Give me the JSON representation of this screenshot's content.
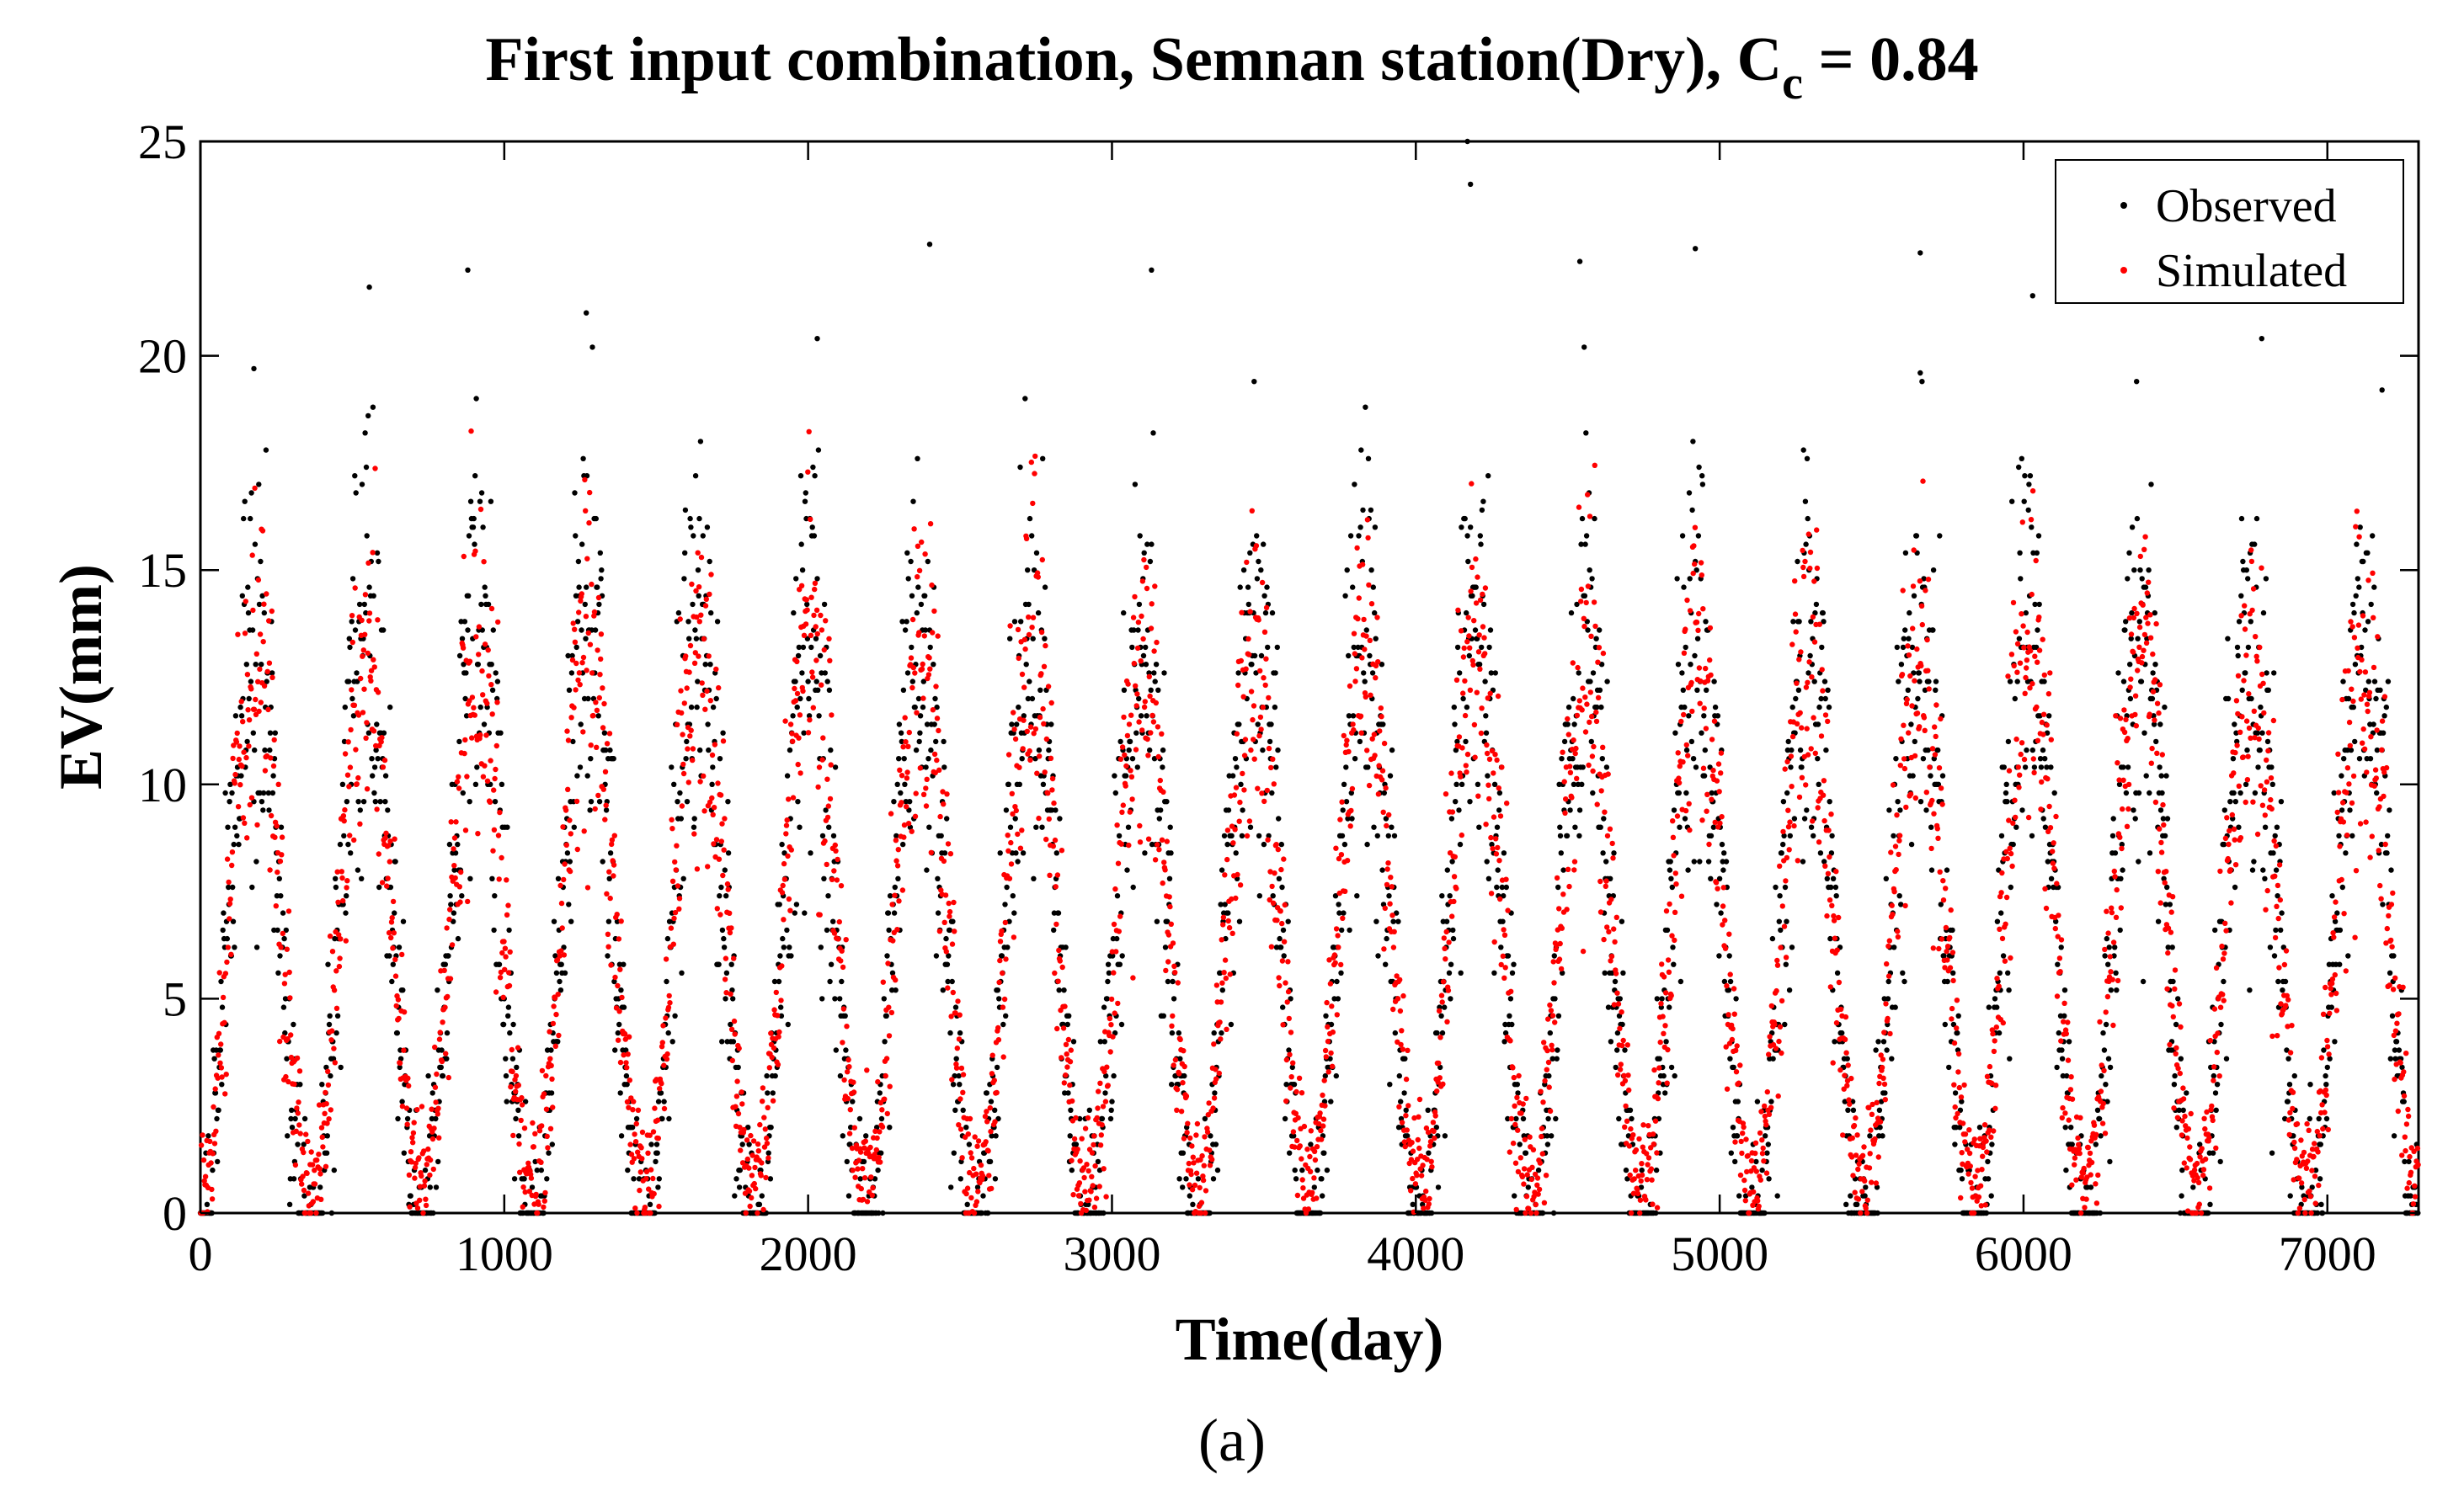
{
  "chart_data": {
    "type": "scatter",
    "title": {
      "main": "First input combination, Semnan station(Dry), C",
      "subscript": "c",
      "suffix": " = 0.84"
    },
    "xlabel": "Time(day)",
    "ylabel": "EV(mm)",
    "panel_label": "(a)",
    "xlim": [
      0,
      7300
    ],
    "ylim": [
      0,
      25
    ],
    "xticks": [
      0,
      1000,
      2000,
      3000,
      4000,
      5000,
      6000,
      7000
    ],
    "yticks": [
      0,
      5,
      10,
      15,
      20,
      25
    ],
    "legend_position": "top-right",
    "series": [
      {
        "name": "Observed",
        "color": "#000000",
        "generator": {
          "days": 7300,
          "period": 365,
          "peak_offset": 180,
          "summer_mean": 13.5,
          "winter_mean": 0.3,
          "noise": 2.6,
          "zero_fraction_winter": 0.6,
          "rounding": 0.2
        }
      },
      {
        "name": "Simulated",
        "color": "#ff0000",
        "generator": {
          "days": 7300,
          "period": 365,
          "peak_offset": 180,
          "summer_mean": 13.0,
          "winter_mean": 0.8,
          "noise": 1.9,
          "zero_fraction_winter": 0.0,
          "rounding": 0
        }
      }
    ],
    "peak_highlights": [
      {
        "x": 176,
        "y": 19.7
      },
      {
        "x": 556,
        "y": 21.6
      },
      {
        "x": 880,
        "y": 22.0
      },
      {
        "x": 1270,
        "y": 21.0
      },
      {
        "x": 2030,
        "y": 20.4
      },
      {
        "x": 2400,
        "y": 22.6
      },
      {
        "x": 3130,
        "y": 22.0
      },
      {
        "x": 4170,
        "y": 25.0
      },
      {
        "x": 4180,
        "y": 24.0
      },
      {
        "x": 4540,
        "y": 22.2
      },
      {
        "x": 4920,
        "y": 22.5
      },
      {
        "x": 5660,
        "y": 22.4
      },
      {
        "x": 6030,
        "y": 21.4
      },
      {
        "x": 7180,
        "y": 19.2
      }
    ]
  }
}
